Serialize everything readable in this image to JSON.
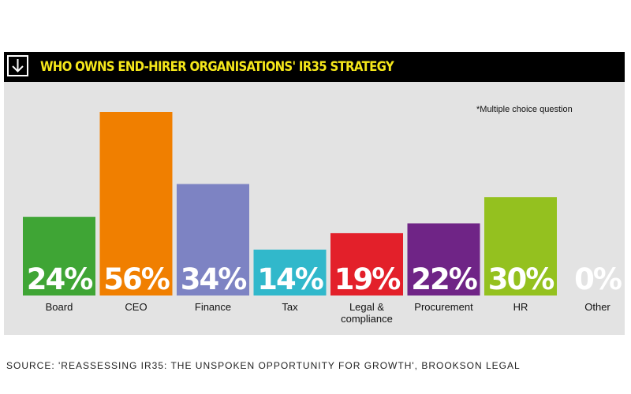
{
  "header": {
    "title": "WHO OWNS END-HIRER ORGANISATIONS' IR35 STRATEGY",
    "icon": "down-arrow-icon",
    "title_color": "#f5e71a"
  },
  "note": "*Multiple choice question",
  "source": "SOURCE: 'REASSESSING IR35: THE UNSPOKEN OPPORTUNITY FOR GROWTH', BROOKSON LEGAL",
  "chart_data": {
    "type": "bar",
    "title": "WHO OWNS END-HIRER ORGANISATIONS' IR35 STRATEGY",
    "categories": [
      "Board",
      "CEO",
      "Finance",
      "Tax",
      "Legal & compliance",
      "Procurement",
      "HR",
      "Other"
    ],
    "category_lines": [
      [
        "Board"
      ],
      [
        "CEO"
      ],
      [
        "Finance"
      ],
      [
        "Tax"
      ],
      [
        "Legal &",
        "compliance"
      ],
      [
        "Procurement"
      ],
      [
        "HR"
      ],
      [
        "Other"
      ]
    ],
    "values": [
      24,
      56,
      34,
      14,
      19,
      22,
      30,
      0
    ],
    "value_labels": [
      "24%",
      "56%",
      "34%",
      "14%",
      "19%",
      "22%",
      "30%",
      "0%"
    ],
    "colors": [
      "#3fa535",
      "#f07f00",
      "#7d83c3",
      "#31b8cb",
      "#e3202a",
      "#6f2486",
      "#94c11f",
      "#e3e3e3"
    ],
    "ylim": [
      0,
      56
    ],
    "grid": false,
    "legend": "none"
  }
}
